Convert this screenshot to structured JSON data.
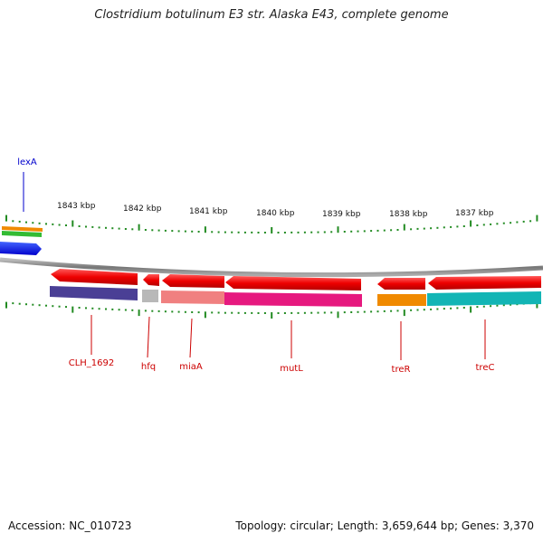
{
  "title": "Clostridium botulinum E3 str. Alaska E43, complete genome",
  "footer": {
    "accession": "Accession: NC_010723",
    "topology": "Topology: circular; Length: 3,659,644 bp; Genes: 3,370"
  },
  "ruler": {
    "labels": [
      "1843 kbp",
      "1842 kbp",
      "1841 kbp",
      "1840 kbp",
      "1839 kbp",
      "1838 kbp",
      "1837 kbp"
    ]
  },
  "genes": [
    {
      "name": "lexA",
      "color": "#0000cc"
    },
    {
      "name": "CLH_1692",
      "color": "#cc0000"
    },
    {
      "name": "hfq",
      "color": "#cc0000"
    },
    {
      "name": "miaA",
      "color": "#cc0000"
    },
    {
      "name": "mutL",
      "color": "#cc0000"
    },
    {
      "name": "treR",
      "color": "#cc0000"
    },
    {
      "name": "treC",
      "color": "#cc0000"
    }
  ],
  "colors": {
    "backbone": "#888888",
    "ticks": "#228B22",
    "cds": "#ee0000",
    "lexA_cds": "#0000ee"
  }
}
